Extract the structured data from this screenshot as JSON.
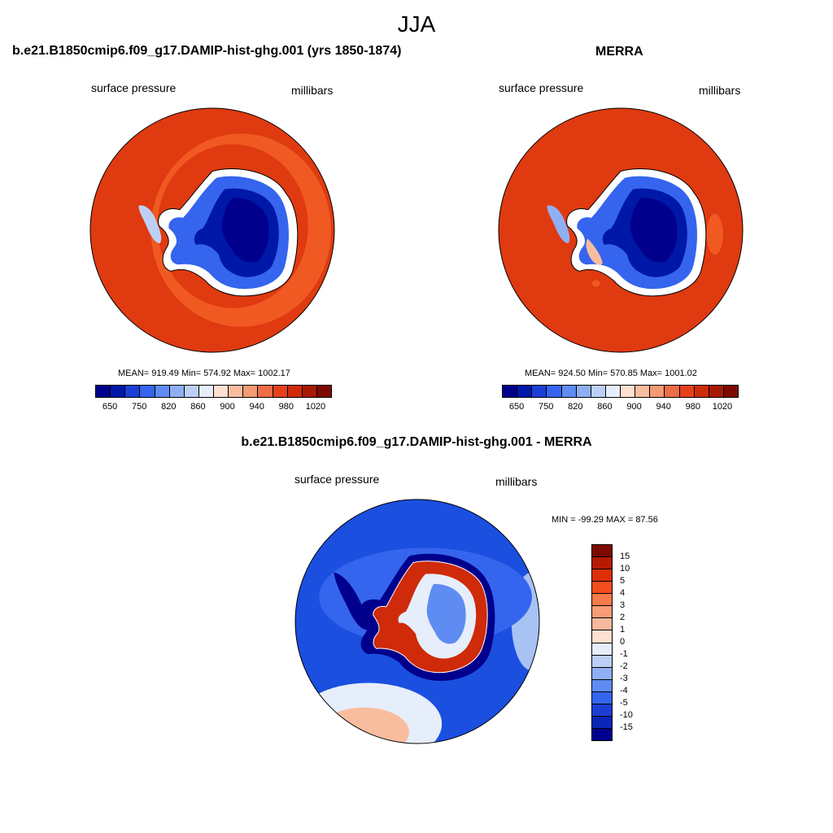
{
  "season": "JJA",
  "panels": [
    {
      "title": "b.e21.B1850cmip6.f09_g17.DAMIP-hist-ghg.001 (yrs 1850-1874)",
      "variable": "surface pressure",
      "units": "millibars",
      "stats": "MEAN= 919.49  Min= 574.92  Max= 1002.17"
    },
    {
      "title": "MERRA",
      "variable": "surface pressure",
      "units": "millibars",
      "stats": "MEAN= 924.50  Min= 570.85  Max= 1001.02"
    },
    {
      "title": "b.e21.B1850cmip6.f09_g17.DAMIP-hist-ghg.001 - MERRA",
      "variable": "surface pressure",
      "units": "millibars",
      "stats": "MIN = -99.29 MAX =  87.56"
    }
  ],
  "colorbar_main": {
    "colors": [
      "#00008c",
      "#0018a8",
      "#1b3fd6",
      "#3565ee",
      "#5f8cf2",
      "#8faff4",
      "#bcd0f7",
      "#e6eefb",
      "#fde0cf",
      "#f8bd9f",
      "#f49a74",
      "#ee6d46",
      "#e5401a",
      "#cf2a0a",
      "#a81904",
      "#7d0a00"
    ],
    "labels": [
      "650",
      "750",
      "820",
      "860",
      "900",
      "940",
      "980",
      "1020"
    ]
  },
  "colorbar_diff": {
    "colors": [
      "#7d0a00",
      "#b51a02",
      "#dd3008",
      "#f24e1e",
      "#f67a4a",
      "#f79c76",
      "#f8b89d",
      "#fde0cf",
      "#e6eefb",
      "#bcd0f7",
      "#8faff4",
      "#5f8cf2",
      "#3565ee",
      "#1b3fd6",
      "#0a26b8",
      "#00008c"
    ],
    "labels": [
      "15",
      "10",
      "5",
      "4",
      "3",
      "2",
      "1",
      "0",
      "-1",
      "-2",
      "-3",
      "-4",
      "-5",
      "-10",
      "-15"
    ]
  },
  "map_colors": {
    "ocean_high": "#e03a10",
    "ocean_mid": "#f05a22",
    "interior_low": "#00008c",
    "diff_ocean": "#1b4fe0",
    "diff_light": "#a8c2f4",
    "diff_positive": "#cf2a0a"
  }
}
